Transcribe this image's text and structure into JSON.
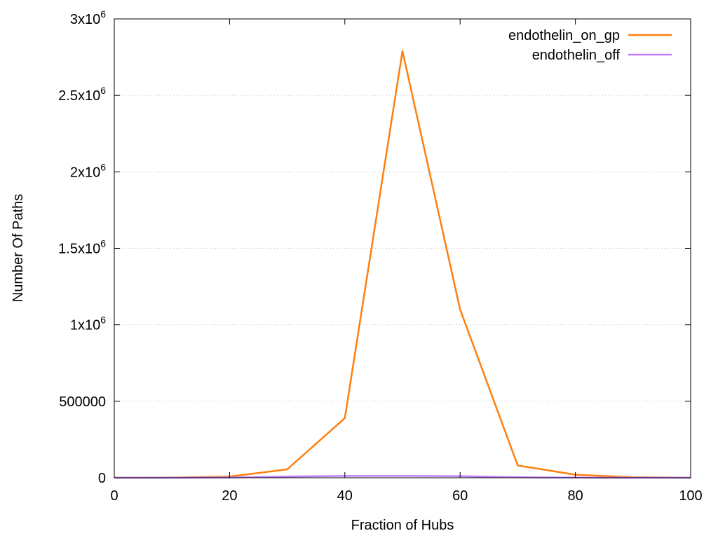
{
  "chart_data": {
    "type": "line",
    "xlabel": "Fraction of Hubs",
    "ylabel": "Number Of Paths",
    "xlim": [
      0,
      100
    ],
    "ylim": [
      0,
      3000000
    ],
    "grid": true,
    "legend_position": "top-right",
    "x_ticks": [
      {
        "value": 0,
        "label": "0"
      },
      {
        "value": 20,
        "label": "20"
      },
      {
        "value": 40,
        "label": "40"
      },
      {
        "value": 60,
        "label": "60"
      },
      {
        "value": 80,
        "label": "80"
      },
      {
        "value": 100,
        "label": "100"
      }
    ],
    "y_ticks": [
      {
        "value": 0,
        "label": "0",
        "exp": ""
      },
      {
        "value": 500000,
        "label": "500000",
        "exp": ""
      },
      {
        "value": 1000000,
        "label": "1x10",
        "exp": "6"
      },
      {
        "value": 1500000,
        "label": "1.5x10",
        "exp": "6"
      },
      {
        "value": 2000000,
        "label": "2x10",
        "exp": "6"
      },
      {
        "value": 2500000,
        "label": "2.5x10",
        "exp": "6"
      },
      {
        "value": 3000000,
        "label": "3x10",
        "exp": "6"
      }
    ],
    "x": [
      0,
      10,
      20,
      30,
      40,
      50,
      60,
      70,
      80,
      90,
      100
    ],
    "series": [
      {
        "name": "endothelin_on_gp",
        "color": "#ff7f0e",
        "values": [
          0,
          1000,
          8000,
          55000,
          390000,
          2790000,
          1100000,
          80000,
          20000,
          3000,
          0
        ]
      },
      {
        "name": "endothelin_off",
        "color": "#c080ff",
        "values": [
          0,
          200,
          2000,
          8000,
          12000,
          13000,
          10000,
          3000,
          1000,
          200,
          0
        ]
      }
    ]
  }
}
